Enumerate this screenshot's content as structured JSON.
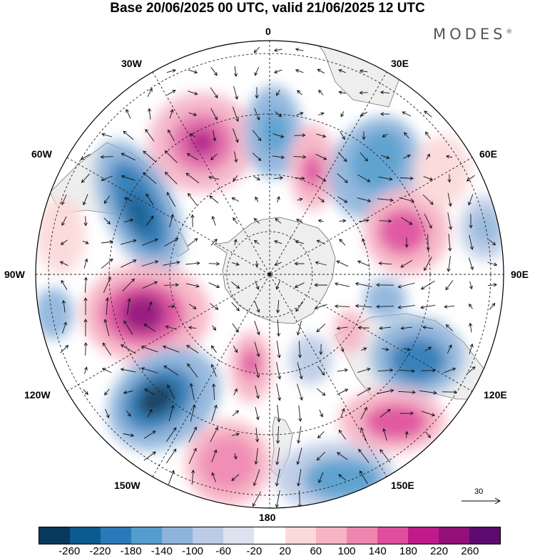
{
  "title": "Base 20/06/2025 00 UTC, valid 21/06/2025 12 UTC",
  "brand": "MODES",
  "brand_mark": "®",
  "longitude_labels": {
    "top": "0",
    "bottom": "180",
    "left": "90W",
    "right": "90E",
    "nw1": "30W",
    "nw2": "60W",
    "ne1": "30E",
    "ne2": "60E",
    "sw1": "120W",
    "sw2": "150W",
    "se1": "120E",
    "se2": "150E"
  },
  "vector_scale_label": "30",
  "colorbar": {
    "colors": [
      "#08385c",
      "#0d5a8f",
      "#2a7ab8",
      "#549dcd",
      "#8eb4dc",
      "#bccbe6",
      "#dee1ee",
      "#ffffff",
      "#fbd9d9",
      "#f7b4c5",
      "#ef86b0",
      "#df4e9c",
      "#c01a8a",
      "#921078",
      "#5d0a6e"
    ],
    "tick_labels": [
      "-260",
      "-220",
      "-180",
      "-140",
      "-100",
      "-60",
      "-20",
      "20",
      "60",
      "100",
      "140",
      "180",
      "220",
      "260"
    ]
  },
  "anomaly_fields": [
    {
      "name": "positive-anomaly-south-atlantic",
      "value": 220
    },
    {
      "name": "negative-anomaly-south-america",
      "value": -200
    },
    {
      "name": "positive-anomaly-southeast-pacific",
      "value": 220
    },
    {
      "name": "negative-anomaly-south-pacific",
      "value": -220
    },
    {
      "name": "positive-anomaly-south-indian",
      "value": 180
    },
    {
      "name": "negative-anomaly-south-australia",
      "value": -200
    },
    {
      "name": "positive-anomaly-tasman-sea",
      "value": 180
    },
    {
      "name": "negative-anomaly-south-new-zealand",
      "value": -180
    }
  ]
}
